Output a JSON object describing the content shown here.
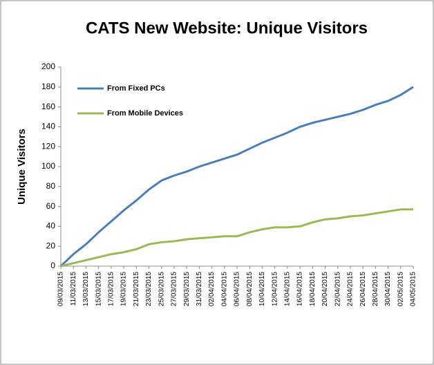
{
  "chart_data": {
    "type": "line",
    "title": "CATS New Website: Unique Visitors",
    "ylabel": "Unique Visitors",
    "categories": [
      "09/03/2015",
      "11/03/2015",
      "13/03/2015",
      "15/03/2015",
      "17/03/2015",
      "19/03/2015",
      "21/03/2015",
      "23/03/2015",
      "25/03/2015",
      "27/03/2015",
      "29/03/2015",
      "31/03/2015",
      "02/04/2015",
      "04/04/2015",
      "06/04/2015",
      "08/04/2015",
      "10/04/2015",
      "12/04/2015",
      "14/04/2015",
      "16/04/2015",
      "18/04/2015",
      "20/04/2015",
      "22/04/2015",
      "24/04/2015",
      "26/04/2015",
      "28/04/2015",
      "30/04/2015",
      "02/05/2015",
      "04/05/2015"
    ],
    "series": [
      {
        "name": "From Fixed PCs",
        "color": "#4a7ebb",
        "values": [
          0,
          12,
          22,
          34,
          45,
          56,
          66,
          77,
          86,
          91,
          95,
          100,
          104,
          108,
          112,
          118,
          124,
          129,
          134,
          140,
          144,
          147,
          150,
          153,
          157,
          162,
          166,
          172,
          180
        ]
      },
      {
        "name": "From Mobile Devices",
        "color": "#98b954",
        "values": [
          0,
          3,
          6,
          9,
          12,
          14,
          17,
          22,
          24,
          25,
          27,
          28,
          29,
          30,
          30,
          34,
          37,
          39,
          39,
          40,
          44,
          47,
          48,
          50,
          51,
          53,
          55,
          57,
          57
        ]
      }
    ],
    "ylim": [
      0,
      200
    ],
    "yticks": [
      0,
      20,
      40,
      60,
      80,
      100,
      120,
      140,
      160,
      180,
      200
    ],
    "grid": false,
    "legend": "upper left"
  }
}
